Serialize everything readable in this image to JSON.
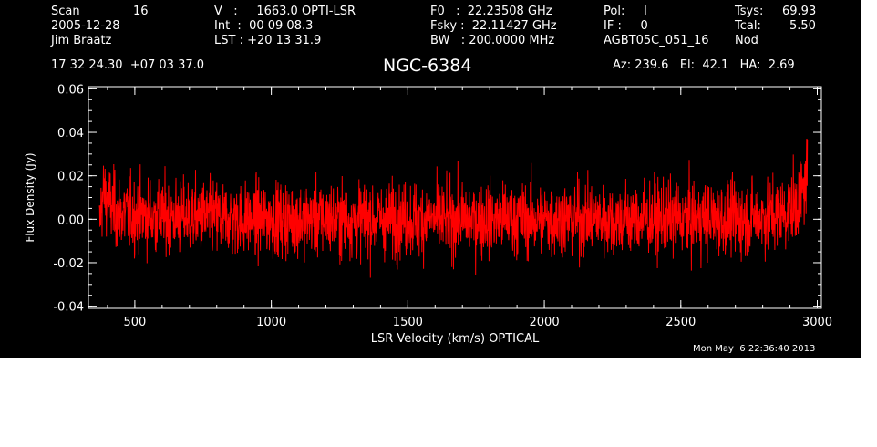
{
  "header": {
    "scan_label": "Scan",
    "scan_value": "16",
    "date": "2005-12-28",
    "observer": "Jim Braatz",
    "coords": "17 32 24.30  +07 03 37.0",
    "v_line": "V   :     1663.0 OPTI-LSR",
    "int_line": "Int  :  00 09 08.3",
    "lst_line": "LST : +20 13 31.9",
    "f0_line": "F0   :  22.23508 GHz",
    "fsky_line": "Fsky :  22.11427 GHz",
    "bw_line": "BW   : 200.0000 MHz",
    "pol_line": "Pol:     I",
    "if_line": "IF :     0",
    "proj_line": "AGBT05C_051_16",
    "tsys_label": "Tsys:",
    "tsys_value": "69.93",
    "tcal_label": "Tcal:",
    "tcal_value": "5.50",
    "nod": "Nod",
    "az_line": "Az: 239.6   El:  42.1   HA:  2.69"
  },
  "source_name": "NGC-6384",
  "timestamp": "Mon May  6 22:36:40 2013",
  "colors": {
    "background": "#000000",
    "axes": "#ffffff",
    "series": "#ff0000"
  },
  "chart_data": {
    "type": "line",
    "xlabel": "LSR Velocity (km/s) OPTICAL",
    "ylabel": "Flux Density (Jy)",
    "xlim": [
      330,
      3015
    ],
    "ylim": [
      -0.041,
      0.061
    ],
    "x_ticks": [
      500,
      1000,
      1500,
      2000,
      2500,
      3000
    ],
    "y_ticks": [
      -0.04,
      -0.02,
      0.0,
      0.02,
      0.04,
      0.06
    ],
    "y_tick_labels": [
      "-0.04",
      "-0.02",
      "0.00",
      "0.02",
      "0.04",
      "0.06"
    ],
    "series": [
      {
        "x_start": 370,
        "x_end": 2965,
        "x": [
          370,
          375,
          385,
          400,
          420,
          440,
          500,
          600,
          700,
          900,
          1100,
          1300,
          1500,
          1700,
          1900,
          2100,
          2300,
          2500,
          2700,
          2850,
          2900,
          2930,
          2950,
          2960,
          2965
        ],
        "baseline": [
          -0.005,
          0.005,
          0.012,
          0.008,
          0.005,
          0.003,
          0.002,
          0.001,
          0.001,
          0.0,
          0.0,
          0.0,
          0.0,
          0.0,
          0.0,
          0.0,
          0.0,
          0.0,
          0.0,
          0.002,
          0.004,
          0.008,
          0.013,
          0.02,
          0.025
        ],
        "noise_rms": 0.0085,
        "y_min": -0.034,
        "y_max": 0.044
      }
    ]
  }
}
